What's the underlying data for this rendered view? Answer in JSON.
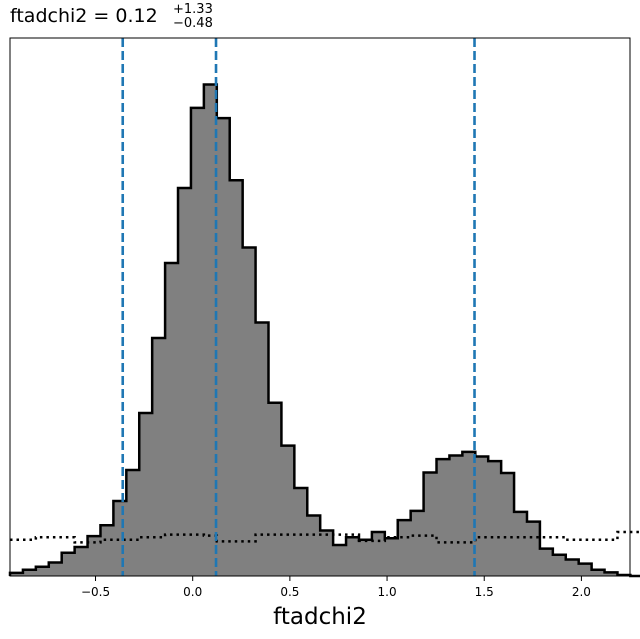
{
  "chart_data": {
    "type": "histogram",
    "title": {
      "prefix": "ftadchi2 = 0.12",
      "upper": "+1.33",
      "lower": "−0.48"
    },
    "xlabel": "ftadchi2",
    "ylabel": "",
    "xlim": [
      -0.94,
      2.25
    ],
    "ylim": [
      0,
      1.04
    ],
    "xticks": [
      -0.5,
      0.0,
      0.5,
      1.0,
      1.5,
      2.0
    ],
    "xtick_labels": [
      "−0.5",
      "0.0",
      "0.5",
      "1.0",
      "1.5",
      "2.0"
    ],
    "yticks_visible": false,
    "grid": false,
    "bins": {
      "start": -0.94,
      "width": 0.0665,
      "posterior": [
        0.006,
        0.012,
        0.018,
        0.026,
        0.045,
        0.056,
        0.077,
        0.098,
        0.145,
        0.205,
        0.315,
        0.46,
        0.605,
        0.75,
        0.905,
        0.95,
        0.885,
        0.765,
        0.635,
        0.49,
        0.335,
        0.252,
        0.17,
        0.117,
        0.088,
        0.06,
        0.075,
        0.07,
        0.085,
        0.073,
        0.108,
        0.126,
        0.2,
        0.226,
        0.233,
        0.24,
        0.231,
        0.222,
        0.199,
        0.124,
        0.105,
        0.053,
        0.041,
        0.032,
        0.024,
        0.012,
        0.007,
        0.002,
        0.0
      ],
      "prior": [
        0.07,
        0.07,
        0.075,
        0.075,
        0.075,
        0.065,
        0.065,
        0.07,
        0.07,
        0.07,
        0.075,
        0.075,
        0.08,
        0.08,
        0.08,
        0.078,
        0.067,
        0.067,
        0.067,
        0.08,
        0.08,
        0.08,
        0.08,
        0.08,
        0.08,
        0.08,
        0.08,
        0.068,
        0.068,
        0.075,
        0.075,
        0.078,
        0.078,
        0.065,
        0.065,
        0.065,
        0.075,
        0.075,
        0.075,
        0.075,
        0.075,
        0.075,
        0.075,
        0.07,
        0.07,
        0.07,
        0.07,
        0.085,
        0.085
      ]
    },
    "fill_color": "#808080",
    "edge_color": "#000000",
    "quantile_lines": {
      "x": [
        -0.36,
        0.12,
        1.45
      ],
      "color": "#1f77b4",
      "style": "dashed"
    }
  }
}
